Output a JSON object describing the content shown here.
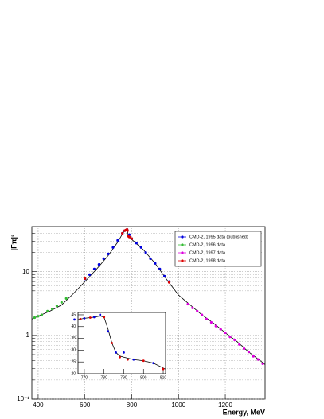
{
  "chart_data": [
    {
      "type": "scatter",
      "xlabel": "Energy, MeV",
      "ylabel": "|Fπ|²",
      "log_y": true,
      "grid": true,
      "legend": "upper right",
      "xlim": [
        373,
        1370
      ],
      "ylim": [
        0.1,
        51
      ],
      "xticks": [
        400,
        600,
        800,
        1000,
        1200
      ],
      "yticks": [
        {
          "value": 0.1,
          "label": "10⁻¹"
        },
        1,
        10
      ],
      "yminorticks": [
        0.2,
        0.3,
        0.4,
        0.5,
        0.6,
        0.7,
        0.8,
        0.9,
        2,
        3,
        4,
        5,
        6,
        7,
        8,
        9,
        20,
        30,
        40,
        50
      ],
      "series": [
        {
          "name": "CMD-2, 1995 data (published)",
          "color": "#0000dd",
          "x": [
            600,
            620,
            640,
            660,
            680,
            700,
            720,
            740,
            760,
            770,
            780,
            790,
            800,
            820,
            840,
            860,
            880,
            900,
            920,
            940,
            960
          ],
          "values": [
            7.7,
            9,
            11,
            13,
            16,
            19,
            24,
            31,
            40,
            44,
            46,
            38,
            33,
            28,
            24,
            20,
            16,
            13.5,
            11,
            8.5,
            7
          ]
        },
        {
          "name": "CMD-2, 1996 data",
          "color": "#33bb33",
          "x": [
            385,
            400,
            415,
            440,
            460,
            480,
            500,
            520
          ],
          "values": [
            1.9,
            2.0,
            2.1,
            2.4,
            2.6,
            2.9,
            3.3,
            3.8
          ]
        },
        {
          "name": "CMD-2, 1997 data",
          "color": "#dd00dd",
          "x": [
            1040,
            1060,
            1080,
            1100,
            1120,
            1140,
            1160,
            1180,
            1200,
            1220,
            1240,
            1260,
            1280,
            1300,
            1320,
            1340,
            1360
          ],
          "values": [
            3.1,
            2.7,
            2.4,
            2.1,
            1.8,
            1.6,
            1.4,
            1.25,
            1.1,
            0.95,
            0.85,
            0.72,
            0.62,
            0.55,
            0.47,
            0.42,
            0.36
          ]
        },
        {
          "name": "CMD-2, 1998 data",
          "color": "#dd0000",
          "x": [
            600,
            760,
            770,
            775,
            780,
            782,
            785,
            790,
            800,
            960
          ],
          "values": [
            7.8,
            40,
            44,
            45,
            46,
            44,
            36,
            35,
            33,
            6.8
          ]
        }
      ],
      "fit": {
        "color": "#000000",
        "x": [
          373,
          400,
          450,
          500,
          550,
          600,
          650,
          700,
          740,
          760,
          770,
          775,
          780,
          782,
          785,
          790,
          800,
          850,
          900,
          950,
          1000,
          1050,
          1100,
          1150,
          1200,
          1250,
          1300,
          1350,
          1370
        ],
        "values": [
          1.8,
          2.0,
          2.4,
          3.0,
          4.5,
          7.0,
          11,
          18,
          29,
          39,
          44,
          46,
          47,
          45,
          36,
          35,
          32,
          22,
          13.5,
          7.5,
          4.3,
          3.0,
          2.1,
          1.55,
          1.1,
          0.8,
          0.55,
          0.4,
          0.35
        ]
      }
    },
    {
      "type": "scatter",
      "log_y": false,
      "grid": false,
      "xlim": [
        766.8,
        811.2
      ],
      "ylim": [
        20,
        46
      ],
      "xticks": [
        770,
        780,
        790,
        800,
        810
      ],
      "yticks": [
        20,
        25,
        30,
        35,
        40,
        45
      ],
      "series": [
        {
          "color": "#0000dd",
          "x": [
            765,
            770,
            775,
            778,
            782,
            786,
            790,
            795,
            805
          ],
          "values": [
            43,
            43.5,
            44,
            45,
            38,
            29,
            29,
            26,
            24.5
          ]
        },
        {
          "color": "#dd0000",
          "x": [
            768,
            773,
            780,
            784,
            788,
            792,
            800,
            810
          ],
          "values": [
            43.2,
            43.8,
            44,
            33,
            27,
            26,
            25.5,
            22
          ]
        }
      ],
      "fit": {
        "color": "#000000",
        "x": [
          767,
          770,
          775,
          778,
          780,
          782,
          784,
          786,
          788,
          790,
          795,
          800,
          805,
          811
        ],
        "values": [
          43,
          43.5,
          44,
          44.5,
          44,
          39,
          33,
          29,
          27.5,
          27,
          26,
          25.5,
          24.5,
          22
        ]
      }
    }
  ]
}
